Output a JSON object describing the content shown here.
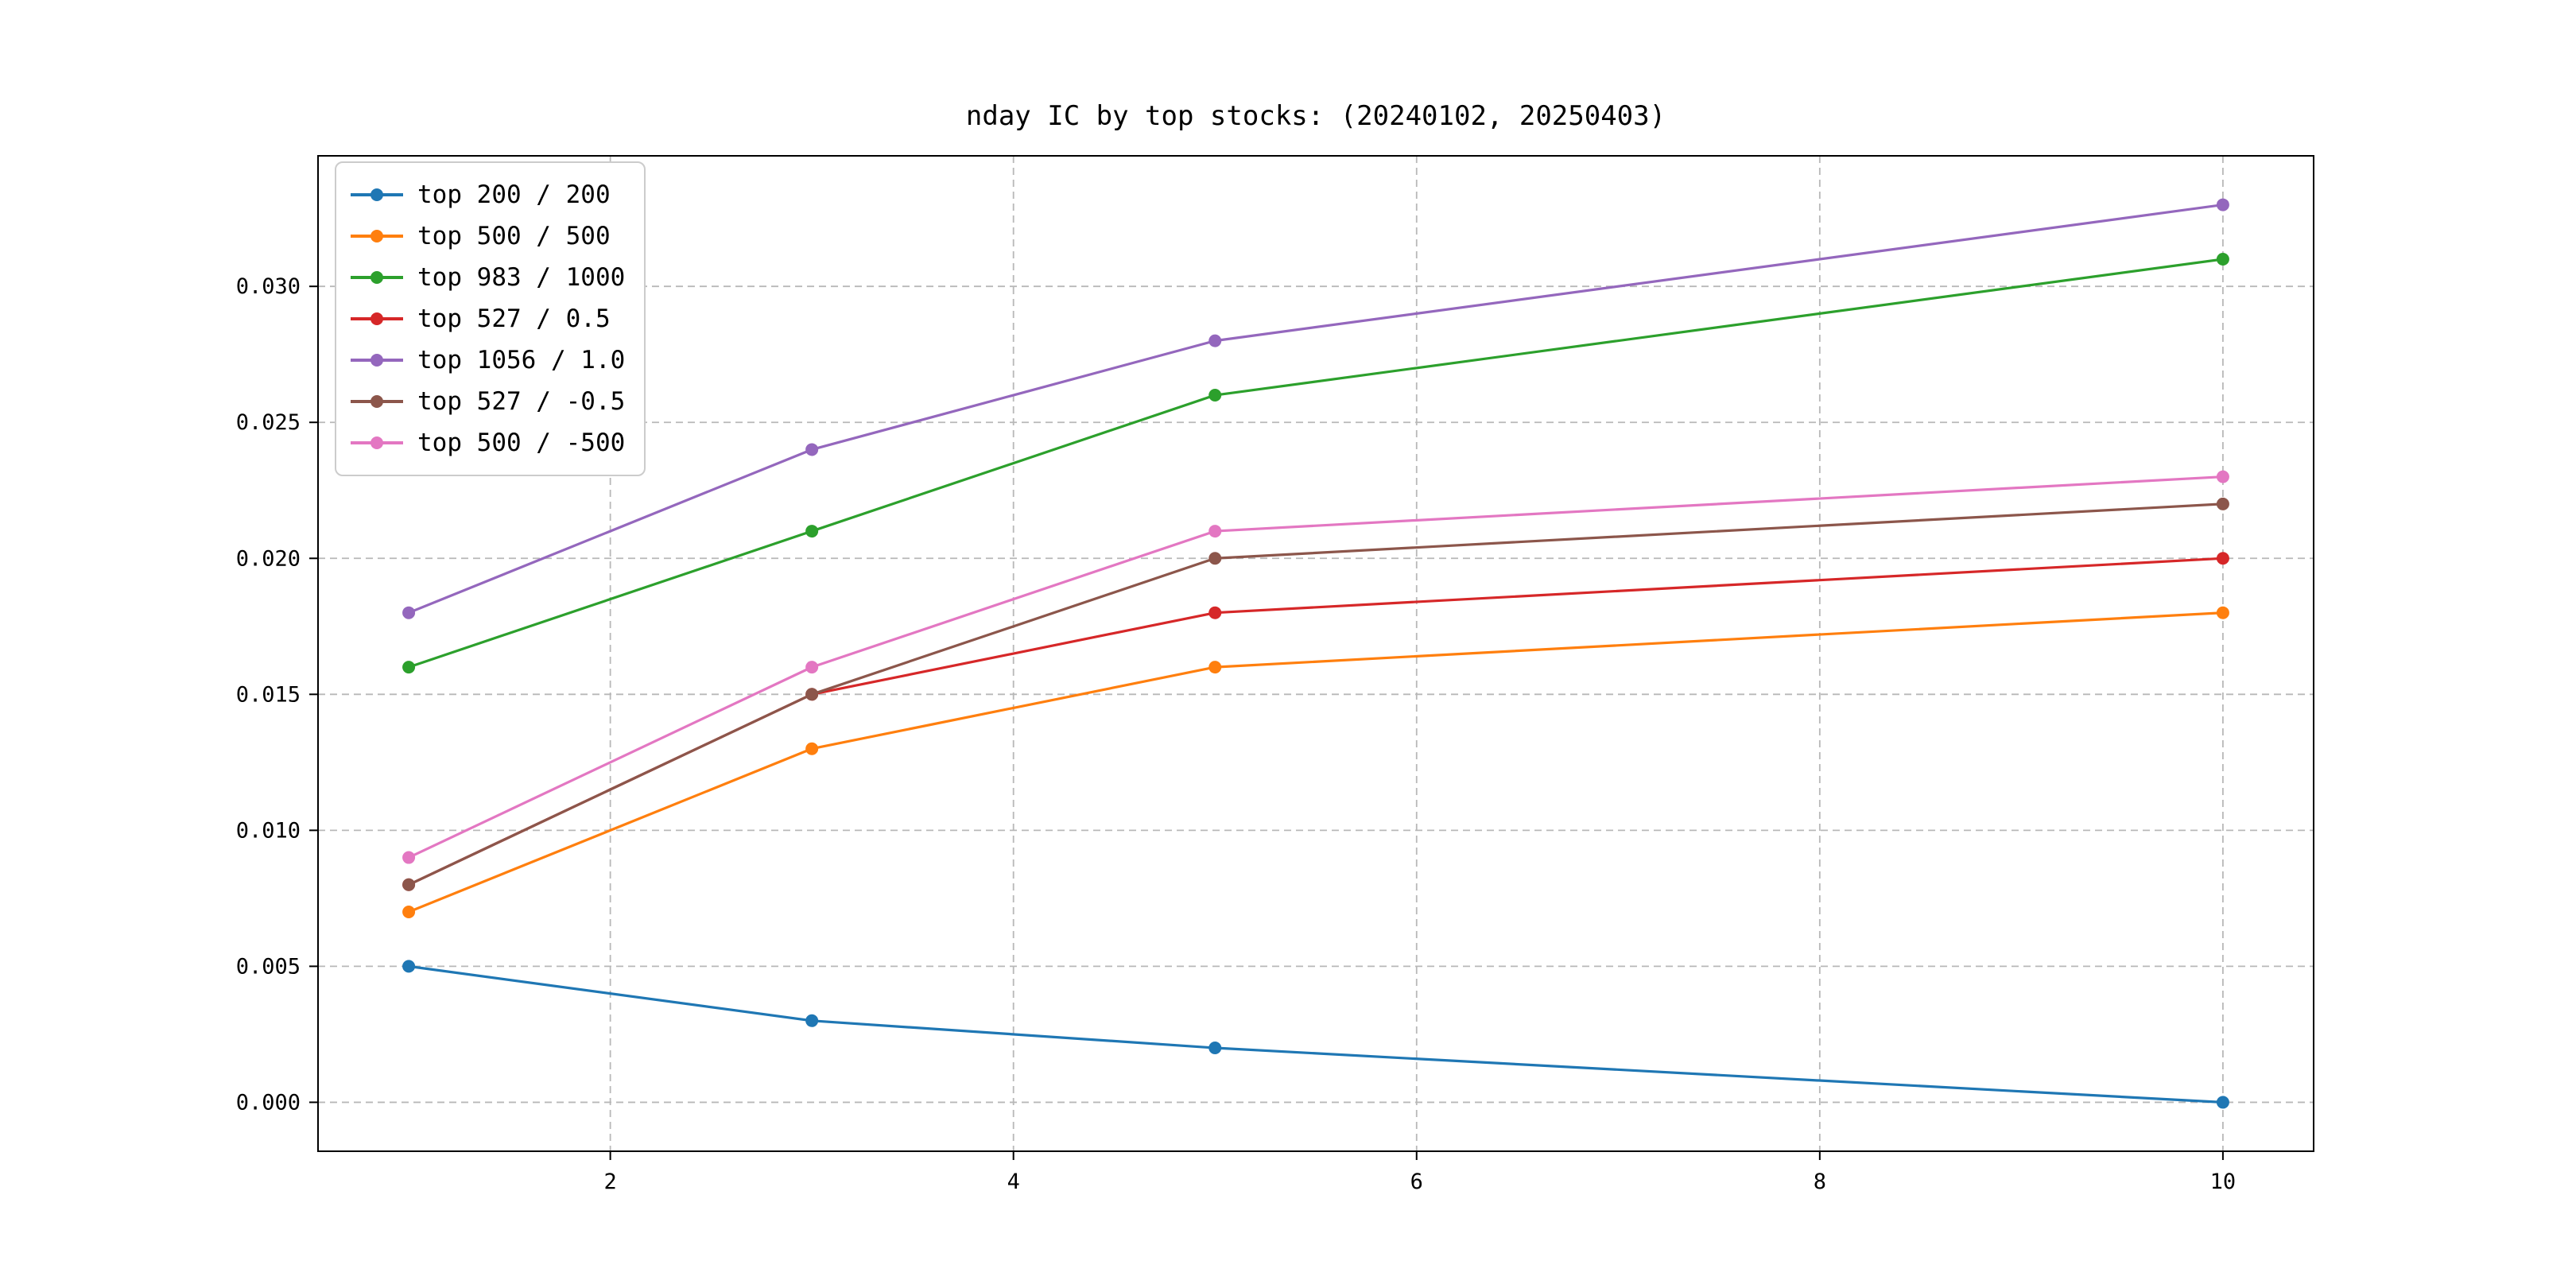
{
  "title": "nday IC by top stocks: (20240102, 20250403)",
  "chart_data": {
    "type": "line",
    "title": "nday IC by top stocks: (20240102, 20250403)",
    "xlabel": "",
    "ylabel": "",
    "x": [
      1,
      3,
      5,
      10
    ],
    "series": [
      {
        "name": "top 200 / 200",
        "color": "#1f77b4",
        "values": [
          0.005,
          0.003,
          0.002,
          0.0
        ]
      },
      {
        "name": "top 500 / 500",
        "color": "#ff7f0e",
        "values": [
          0.007,
          0.013,
          0.016,
          0.018
        ]
      },
      {
        "name": "top 983 / 1000",
        "color": "#2ca02c",
        "values": [
          0.016,
          0.021,
          0.026,
          0.031
        ]
      },
      {
        "name": "top 527 / 0.5",
        "color": "#d62728",
        "values": [
          0.008,
          0.015,
          0.018,
          0.02
        ]
      },
      {
        "name": "top 1056 / 1.0",
        "color": "#9467bd",
        "values": [
          0.018,
          0.024,
          0.028,
          0.033
        ]
      },
      {
        "name": "top 527 / -0.5",
        "color": "#8c564b",
        "values": [
          0.008,
          0.015,
          0.02,
          0.022
        ]
      },
      {
        "name": "top 500 / -500",
        "color": "#e377c2",
        "values": [
          0.009,
          0.016,
          0.021,
          0.023
        ]
      }
    ],
    "xlim": [
      0.55,
      10.45
    ],
    "ylim": [
      -0.0018,
      0.0348
    ],
    "x_ticks": [
      2,
      4,
      6,
      8,
      10
    ],
    "y_ticks": [
      0.0,
      0.005,
      0.01,
      0.015,
      0.02,
      0.025,
      0.03
    ],
    "y_tick_decimals": 3,
    "grid": true,
    "grid_style": "dashed",
    "grid_color": "#b8b8b8",
    "axis_color": "#000000",
    "legend_position": "upper left"
  }
}
